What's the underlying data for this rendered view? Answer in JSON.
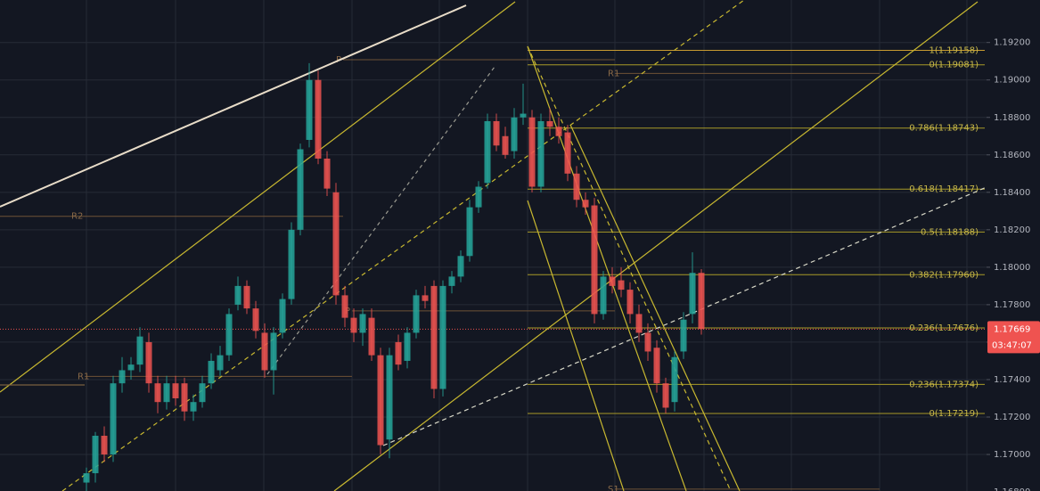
{
  "chart_data": {
    "type": "candlestick",
    "open": [
      1.1685,
      1.169,
      1.171,
      1.17,
      1.1738,
      1.1745,
      1.1748,
      1.176,
      1.1738,
      1.1728,
      1.1738,
      1.1738,
      1.1723,
      1.1728,
      1.1738,
      1.1745,
      1.1753,
      1.178,
      1.179,
      1.1778,
      1.1765,
      1.1745,
      1.1765,
      1.1783,
      1.182,
      1.1868,
      1.19,
      1.1858,
      1.184,
      1.1785,
      1.1773,
      1.1765,
      1.1773,
      1.1753,
      1.1708,
      1.176,
      1.175,
      1.1765,
      1.1785,
      1.179,
      1.1735,
      1.179,
      1.1795,
      1.1806,
      1.1832,
      1.1845,
      1.1878,
      1.187,
      1.1862,
      1.188,
      1.188,
      1.1843,
      1.1878,
      1.1875,
      1.1872,
      1.185,
      1.1836,
      1.1833,
      1.1775,
      1.1795,
      1.1793,
      1.1788,
      1.1775,
      1.1765,
      1.1757,
      1.1738,
      1.1728,
      1.1755,
      1.1775,
      1.1797
    ],
    "high": [
      1.1693,
      1.1712,
      1.1715,
      1.1742,
      1.1752,
      1.1752,
      1.1768,
      1.1765,
      1.1742,
      1.1742,
      1.1742,
      1.1741,
      1.1732,
      1.1742,
      1.1754,
      1.1758,
      1.1778,
      1.1795,
      1.1793,
      1.1782,
      1.177,
      1.1768,
      1.1786,
      1.1824,
      1.1866,
      1.1909,
      1.1905,
      1.1862,
      1.1845,
      1.179,
      1.1778,
      1.1778,
      1.1778,
      1.1757,
      1.1757,
      1.1764,
      1.1768,
      1.1788,
      1.179,
      1.1793,
      1.1793,
      1.1798,
      1.1809,
      1.1836,
      1.1846,
      1.1882,
      1.1882,
      1.1875,
      1.1885,
      1.1898,
      1.1884,
      1.1882,
      1.1885,
      1.188,
      1.1876,
      1.1854,
      1.184,
      1.1837,
      1.1798,
      1.18,
      1.18,
      1.1792,
      1.178,
      1.177,
      1.1761,
      1.1741,
      1.1755,
      1.1776,
      1.1808,
      1.1799
    ],
    "low": [
      1.1678,
      1.1685,
      1.1696,
      1.1696,
      1.1733,
      1.174,
      1.1744,
      1.1733,
      1.1722,
      1.1724,
      1.1726,
      1.1718,
      1.1718,
      1.1725,
      1.1735,
      1.1742,
      1.175,
      1.1777,
      1.1775,
      1.1762,
      1.1741,
      1.1732,
      1.1762,
      1.178,
      1.1817,
      1.1864,
      1.1855,
      1.1838,
      1.178,
      1.1768,
      1.176,
      1.1758,
      1.175,
      1.17,
      1.1698,
      1.1745,
      1.1746,
      1.1762,
      1.1778,
      1.173,
      1.1731,
      1.1786,
      1.1792,
      1.1803,
      1.1829,
      1.1842,
      1.1862,
      1.1858,
      1.1858,
      1.1876,
      1.184,
      1.184,
      1.187,
      1.1866,
      1.1846,
      1.1832,
      1.1828,
      1.177,
      1.1772,
      1.1786,
      1.1784,
      1.177,
      1.176,
      1.175,
      1.1733,
      1.1722,
      1.1723,
      1.1751,
      1.177,
      1.1764
    ],
    "close": [
      1.169,
      1.171,
      1.17,
      1.1738,
      1.1745,
      1.1748,
      1.1763,
      1.1738,
      1.1728,
      1.1738,
      1.173,
      1.1723,
      1.1728,
      1.1738,
      1.175,
      1.1753,
      1.1775,
      1.179,
      1.1778,
      1.1766,
      1.1745,
      1.1765,
      1.1783,
      1.182,
      1.1863,
      1.19,
      1.1858,
      1.1842,
      1.1785,
      1.1773,
      1.1765,
      1.1775,
      1.1753,
      1.1705,
      1.1753,
      1.1748,
      1.1765,
      1.1785,
      1.1782,
      1.1735,
      1.179,
      1.1795,
      1.1806,
      1.1832,
      1.1843,
      1.1878,
      1.1865,
      1.186,
      1.188,
      1.1882,
      1.1843,
      1.1878,
      1.1875,
      1.187,
      1.185,
      1.1836,
      1.1832,
      1.1775,
      1.1795,
      1.179,
      1.1788,
      1.1775,
      1.1765,
      1.1755,
      1.1738,
      1.1725,
      1.1752,
      1.1772,
      1.1797,
      1.1767
    ],
    "up_color": "#26a69a",
    "down_color": "#ef5350",
    "ylim": [
      1.16805,
      1.19427
    ],
    "yticks": [
      {
        "value": 1.192,
        "label": "1.19200"
      },
      {
        "value": 1.19,
        "label": "1.19000"
      },
      {
        "value": 1.188,
        "label": "1.18800"
      },
      {
        "value": 1.186,
        "label": "1.18600"
      },
      {
        "value": 1.184,
        "label": "1.18400"
      },
      {
        "value": 1.182,
        "label": "1.18200"
      },
      {
        "value": 1.18,
        "label": "1.18000"
      },
      {
        "value": 1.178,
        "label": "1.17800"
      },
      {
        "value": 1.176,
        "label": "1.17600"
      },
      {
        "value": 1.174,
        "label": "1.17400"
      },
      {
        "value": 1.172,
        "label": "1.17200"
      },
      {
        "value": 1.17,
        "label": "1.17000"
      },
      {
        "value": 1.168,
        "label": "1.16800"
      }
    ],
    "fib_levels": [
      {
        "value": 1.19158,
        "label": "1(1.19158)"
      },
      {
        "value": 1.19081,
        "label": "0(1.19081)"
      },
      {
        "value": 1.18743,
        "label": "0.786(1.18743)"
      },
      {
        "value": 1.18417,
        "label": "0.618(1.18417)"
      },
      {
        "value": 1.18188,
        "label": "0.5(1.18188)"
      },
      {
        "value": 1.1796,
        "label": "0.382(1.17960)"
      },
      {
        "value": 1.17676,
        "label": "0.236(1.17676)"
      },
      {
        "value": 1.17374,
        "label": "0.236(1.17374)"
      },
      {
        "value": 1.17219,
        "label": "0(1.17219)"
      }
    ],
    "pivots": [
      {
        "value": 1.18272,
        "label": "R2"
      },
      {
        "value": 1.17417,
        "label": "R1"
      },
      {
        "value": 1.19108,
        "label": "P"
      },
      {
        "value": 1.17767,
        "label": "P"
      },
      {
        "value": 1.19035,
        "label": "R1"
      },
      {
        "value": 1.16815,
        "label": "S1"
      }
    ],
    "last_price": {
      "value": 1.17669,
      "label": "1.17669"
    },
    "countdown": "03:47:07"
  }
}
